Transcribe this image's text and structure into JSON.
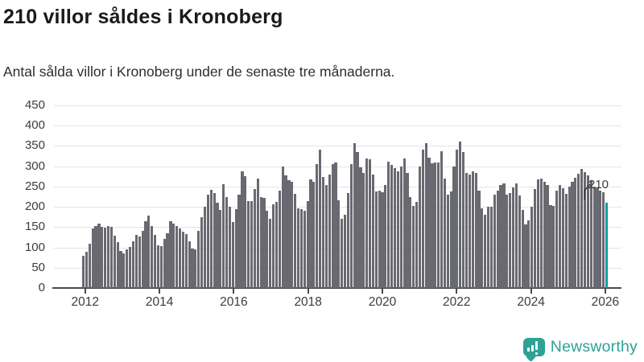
{
  "header": {
    "title": "210 villor såldes i Kronoberg",
    "subtitle": "Antal sålda villor i Kronoberg under de senaste tre månaderna."
  },
  "chart_data": {
    "type": "bar",
    "title": "210 villor såldes i Kronoberg",
    "subtitle": "Antal sålda villor i Kronoberg under de senaste tre månaderna.",
    "ylabel": "",
    "xlabel": "",
    "ylim": [
      0,
      450
    ],
    "y_ticks": [
      0,
      50,
      100,
      150,
      200,
      250,
      300,
      350,
      400,
      450
    ],
    "x_tick_labels": [
      "2012",
      "2014",
      "2016",
      "2018",
      "2020",
      "2022",
      "2024",
      "2026"
    ],
    "grid": true,
    "bar_color": "#696971",
    "series_note": "monthly values Jan 2012 - Jan 2026, rolling 3-month sales",
    "values": [
      80,
      90,
      110,
      147,
      152,
      158,
      150,
      148,
      153,
      150,
      128,
      113,
      92,
      85,
      95,
      102,
      115,
      130,
      126,
      140,
      165,
      178,
      152,
      130,
      106,
      104,
      120,
      134,
      165,
      158,
      153,
      147,
      138,
      132,
      114,
      98,
      95,
      140,
      175,
      200,
      230,
      242,
      234,
      210,
      192,
      255,
      224,
      200,
      162,
      194,
      230,
      287,
      276,
      214,
      214,
      244,
      270,
      224,
      222,
      190,
      170,
      206,
      212,
      240,
      300,
      277,
      266,
      261,
      232,
      196,
      194,
      190,
      214,
      267,
      262,
      306,
      340,
      273,
      253,
      280,
      306,
      310,
      216,
      170,
      181,
      233,
      306,
      357,
      336,
      297,
      283,
      320,
      318,
      280,
      238,
      240,
      235,
      253,
      312,
      303,
      296,
      287,
      300,
      320,
      283,
      224,
      203,
      213,
      300,
      340,
      356,
      322,
      307,
      310,
      310,
      337,
      270,
      230,
      237,
      300,
      340,
      360,
      336,
      283,
      280,
      287,
      283,
      240,
      197,
      180,
      200,
      200,
      230,
      240,
      253,
      257,
      230,
      233,
      247,
      257,
      227,
      193,
      157,
      167,
      200,
      244,
      267,
      270,
      262,
      253,
      205,
      203,
      240,
      253,
      246,
      232,
      250,
      262,
      272,
      282,
      294,
      286,
      277,
      265,
      250,
      245,
      240,
      235,
      210
    ],
    "highlight": {
      "index": 168,
      "value": 210,
      "label": "210",
      "color": "#00a1a1"
    }
  },
  "annotation": {
    "last_value_label": "210"
  },
  "footer": {
    "brand": "Newsworthy",
    "brand_color": "#2fa197"
  },
  "colors": {
    "bar_gray": "#696971",
    "accent_teal": "#00a1a1",
    "logo_teal": "#2fa197",
    "gridline": "#e4e4e4",
    "axis": "#4a4a4a"
  }
}
